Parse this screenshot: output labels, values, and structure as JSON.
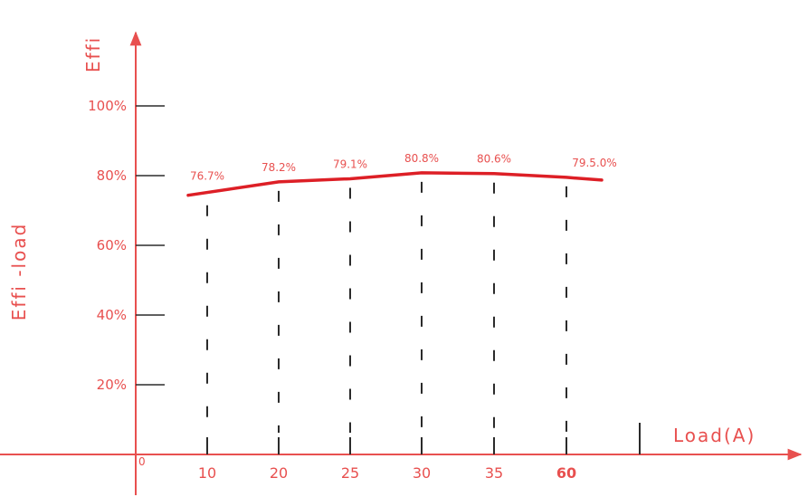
{
  "chart_data": {
    "type": "line",
    "title": "",
    "ylabel": "Effi",
    "ylabel_side": "Effi -load",
    "xlabel": "Load(A)",
    "origin_label": "0",
    "x_tick_labels": [
      "10",
      "20",
      "25",
      "30",
      "35",
      "60"
    ],
    "y_tick_labels": [
      "20%",
      "40%",
      "60%",
      "80%",
      "100%"
    ],
    "y_ticks": [
      20,
      40,
      60,
      80,
      100
    ],
    "ylim": [
      0,
      115
    ],
    "grid": false,
    "series": [
      {
        "x": [
          "10",
          "20",
          "25",
          "30",
          "35",
          "60"
        ],
        "values": [
          76.7,
          78.2,
          79.1,
          80.8,
          80.6,
          79.5
        ],
        "data_labels": [
          "76.7%",
          "78.2%",
          "79.1%",
          "80.8%",
          "80.6%",
          "79.5.0%"
        ]
      }
    ],
    "colors": {
      "axis": "#e8504f",
      "line": "#dd1f26",
      "text": "#e8504f",
      "dashes": "#2b2b2b",
      "last_tick_label": "#c0181e"
    }
  }
}
